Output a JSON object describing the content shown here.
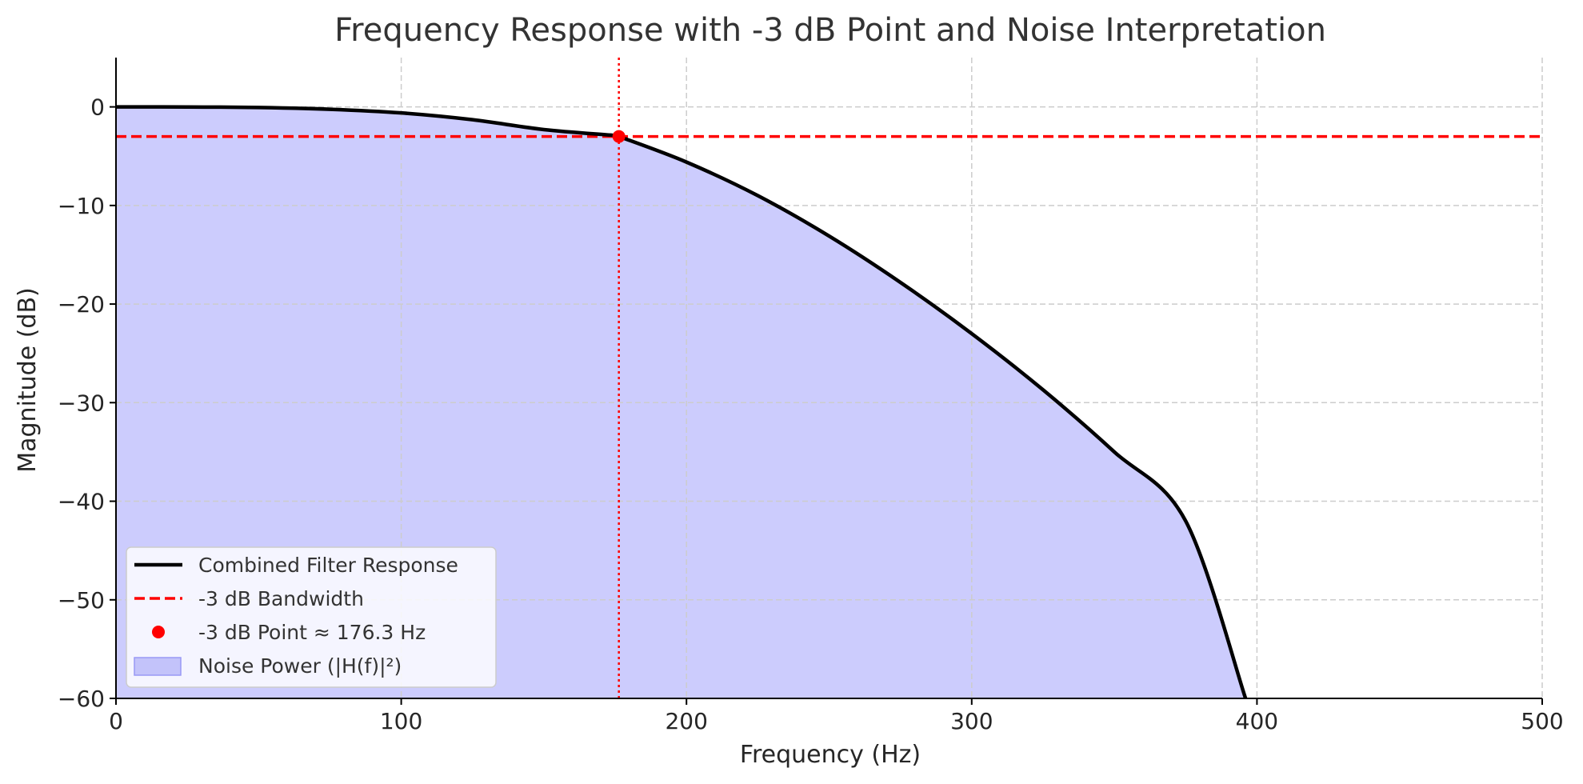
{
  "chart_data": {
    "type": "line",
    "title": "Frequency Response with -3 dB Point and Noise Interpretation",
    "xlabel": "Frequency (Hz)",
    "ylabel": "Magnitude (dB)",
    "xlim": [
      0,
      500
    ],
    "ylim": [
      -60,
      5
    ],
    "x_ticks": [
      0,
      100,
      200,
      300,
      400,
      500
    ],
    "y_ticks": [
      0,
      -10,
      -20,
      -30,
      -40,
      -50,
      -60
    ],
    "x_tick_labels": [
      "0",
      "100",
      "200",
      "300",
      "400",
      "500"
    ],
    "y_tick_labels": [
      "0",
      "−10",
      "−20",
      "−30",
      "−40",
      "−50",
      "−60"
    ],
    "grid": true,
    "legend_position": "lower-left",
    "series": [
      {
        "name": "Combined Filter Response",
        "kind": "line",
        "color": "#000000",
        "x": [
          0,
          25,
          50,
          75,
          100,
          125,
          150,
          175,
          176.3,
          200,
          225,
          250,
          275,
          300,
          325,
          350,
          375,
          396
        ],
        "y": [
          0,
          -0.01,
          -0.06,
          -0.24,
          -0.61,
          -1.3,
          -2.3,
          -2.9,
          -3.0,
          -5.6,
          -9.0,
          -13.1,
          -17.8,
          -23.0,
          -28.7,
          -35.0,
          -42.0,
          -60
        ]
      },
      {
        "name": "-3 dB Bandwidth",
        "kind": "hline",
        "style": "dashed",
        "color": "#ff0000",
        "y": -3
      },
      {
        "name": "-3 dB Point ≈ 176.3 Hz",
        "kind": "point",
        "color": "#ff0000",
        "x": 176.3,
        "y": -3
      },
      {
        "name": "Noise Power (|H(f)|²)",
        "kind": "area",
        "color": "#ccccfd"
      }
    ],
    "vertical_marker": {
      "x": 176.3,
      "style": "dotted",
      "color": "#ff0000"
    }
  },
  "colors": {
    "fill": "#ccccfd",
    "legend_fill_patch": "#c3c3fa",
    "legend_fill_border": "#9a9af5",
    "grid": "#cccccc",
    "accent": "#ff0000"
  }
}
